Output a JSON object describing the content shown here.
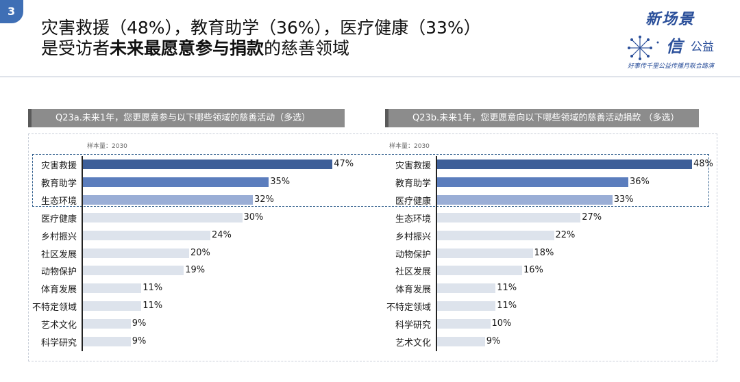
{
  "badge": "3",
  "title": {
    "line1": "灾害救援（48%），教育助学（36%），医疗健康（33%）",
    "line2_pre": "是受访者",
    "line2_bold": "未来最愿意参与捐款",
    "line2_post": "的慈善领域"
  },
  "logo": {
    "line1": "新场景",
    "line2a": "信",
    "line2b": "公益",
    "line3": "好事传千里公益传播月联合路演"
  },
  "colors": {
    "top1": "#3e5f99",
    "top2": "#5b7dbd",
    "top3": "#9aaed6",
    "rest": "#dde3ec"
  },
  "chart_data": [
    {
      "type": "bar",
      "orientation": "horizontal",
      "title": "Q23a.未来1年，您更愿意参与以下哪些领域的慈善活动（多选）",
      "sample_label": "样本量：2030",
      "categories": [
        "灾害救援",
        "教育助学",
        "生态环境",
        "医疗健康",
        "乡村振兴",
        "社区发展",
        "动物保护",
        "体育发展",
        "不特定领域",
        "艺术文化",
        "科学研究"
      ],
      "values": [
        47,
        35,
        32,
        30,
        24,
        20,
        19,
        11,
        11,
        9,
        9
      ],
      "value_labels": [
        "47%",
        "35%",
        "32%",
        "30%",
        "24%",
        "20%",
        "19%",
        "11%",
        "11%",
        "9%",
        "9%"
      ],
      "xlim": [
        0,
        50
      ],
      "legend": "none",
      "grid": false
    },
    {
      "type": "bar",
      "orientation": "horizontal",
      "title": "Q23b.未来1年，您更愿意向以下哪些领域的慈善活动捐款 （多选）",
      "sample_label": "样本量：2030",
      "categories": [
        "灾害救援",
        "教育助学",
        "医疗健康",
        "生态环境",
        "乡村振兴",
        "动物保护",
        "社区发展",
        "体育发展",
        "不特定领域",
        "科学研究",
        "艺术文化"
      ],
      "values": [
        48,
        36,
        33,
        27,
        22,
        18,
        16,
        11,
        11,
        10,
        9
      ],
      "value_labels": [
        "48%",
        "36%",
        "33%",
        "27%",
        "22%",
        "18%",
        "16%",
        "11%",
        "11%",
        "10%",
        "9%"
      ],
      "xlim": [
        0,
        50
      ],
      "legend": "none",
      "grid": false
    }
  ]
}
